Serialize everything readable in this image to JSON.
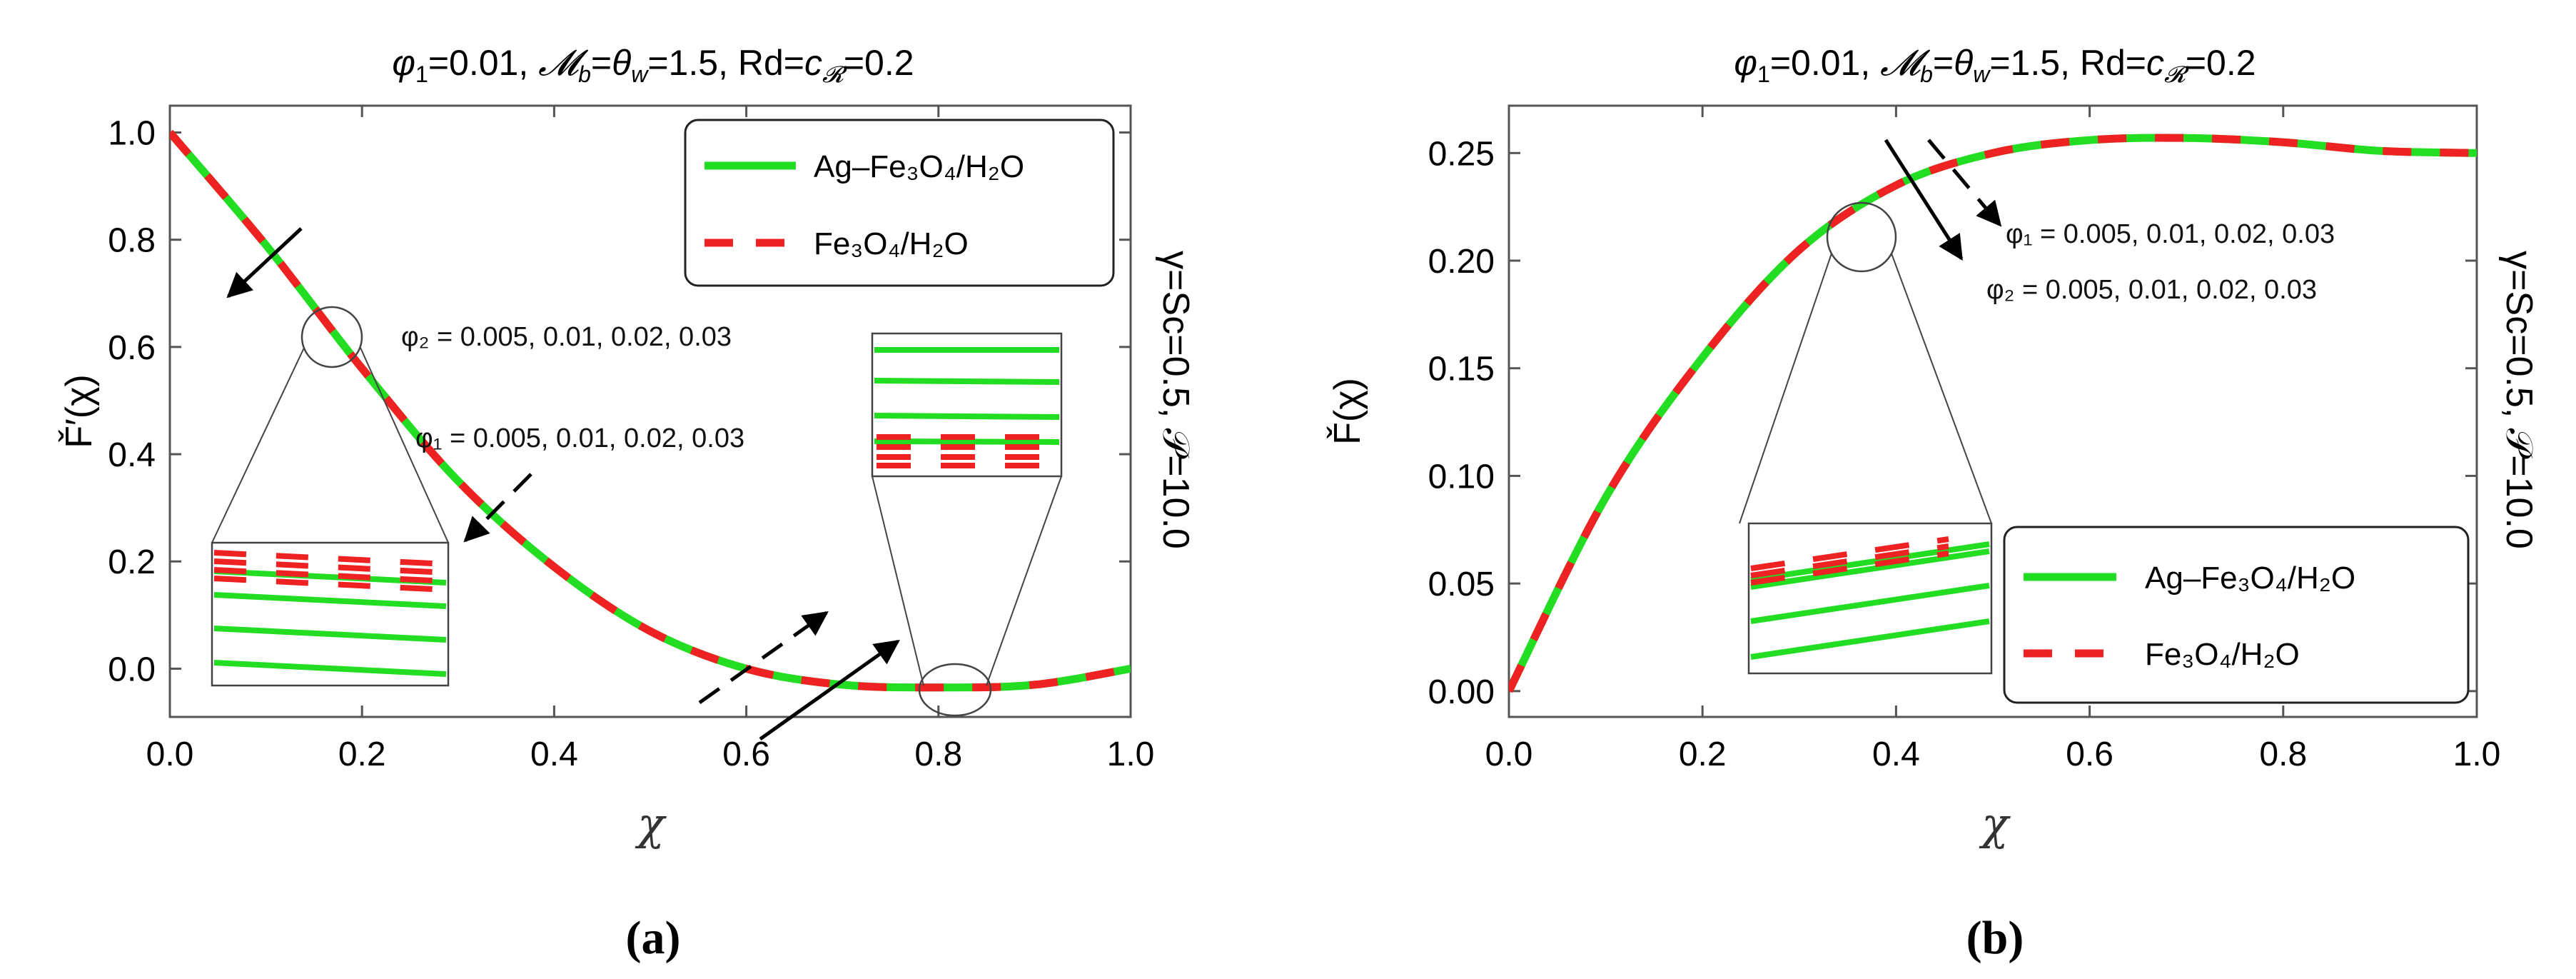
{
  "colors": {
    "green": "#22dd22",
    "red": "#ee2222",
    "black": "#000000"
  },
  "chart_data": [
    {
      "type": "line",
      "panel_label": "(a)",
      "title": "φ₁=0.01, 𝓜_b=θ_w=1.5, Rd=c_𝓡=0.2",
      "title_parts": {
        "phi": "φ",
        "one": "1",
        "a": "=0.01, ",
        "M": "𝓜",
        "b": "b",
        "eq": "=",
        "theta": "θ",
        "w": "w",
        "c": "=1.5, Rd=",
        "cR": "c",
        "R": "𝓡",
        "d": "=0.2"
      },
      "xlabel": "χ",
      "ylabel": "F̌′(χ)",
      "side_label": "γ=Sc=0.5, 𝒫=10.0",
      "xlim": [
        0.0,
        1.0
      ],
      "ylim": [
        -0.09,
        1.05
      ],
      "x_ticks": [
        "0.0",
        "0.2",
        "0.4",
        "0.6",
        "0.8",
        "1.0"
      ],
      "y_ticks": [
        "0.0",
        "0.2",
        "0.4",
        "0.6",
        "0.8",
        "1.0"
      ],
      "x": [
        0.0,
        0.1,
        0.2,
        0.3,
        0.4,
        0.5,
        0.6,
        0.7,
        0.8,
        0.9,
        1.0
      ],
      "series": [
        {
          "name": "Ag–Fe₃O₄/H₂O",
          "style": "solid-green",
          "values": [
            1.0,
            0.79,
            0.56,
            0.35,
            0.19,
            0.07,
            0.0,
            -0.03,
            -0.035,
            -0.03,
            0.0
          ]
        },
        {
          "name": "Fe₃O₄/H₂O",
          "style": "dashed-red",
          "values": [
            1.0,
            0.79,
            0.56,
            0.35,
            0.19,
            0.07,
            0.0,
            -0.03,
            -0.035,
            -0.03,
            0.0
          ]
        }
      ],
      "legend": [
        "Ag–Fe₃O₄/H₂O",
        "Fe₃O₄/H₂O"
      ],
      "legend_position": "top-right",
      "annotations": [
        "φ₂ = 0.005, 0.01, 0.02, 0.03",
        "φ₁ = 0.005, 0.01, 0.02, 0.03"
      ]
    },
    {
      "type": "line",
      "panel_label": "(b)",
      "title": "φ₁=0.01, 𝓜_b=θ_w=1.5, Rd=c_𝓡=0.2",
      "xlabel": "χ",
      "ylabel": "F̌(χ)",
      "side_label": "γ=Sc=0.5, 𝒫=10.0",
      "xlim": [
        0.0,
        1.0
      ],
      "ylim": [
        -0.012,
        0.272
      ],
      "x_ticks": [
        "0.0",
        "0.2",
        "0.4",
        "0.6",
        "0.8",
        "1.0"
      ],
      "y_ticks": [
        "0.00",
        "0.05",
        "0.10",
        "0.15",
        "0.20",
        "0.25"
      ],
      "x": [
        0.0,
        0.1,
        0.2,
        0.3,
        0.4,
        0.5,
        0.6,
        0.7,
        0.8,
        0.9,
        1.0
      ],
      "series": [
        {
          "name": "Ag–Fe₃O₄/H₂O",
          "style": "solid-green",
          "values": [
            0.0,
            0.09,
            0.155,
            0.205,
            0.235,
            0.25,
            0.256,
            0.257,
            0.255,
            0.251,
            0.25
          ]
        },
        {
          "name": "Fe₃O₄/H₂O",
          "style": "dashed-red",
          "values": [
            0.0,
            0.09,
            0.155,
            0.205,
            0.235,
            0.25,
            0.256,
            0.257,
            0.255,
            0.251,
            0.25
          ]
        }
      ],
      "legend": [
        "Ag–Fe₃O₄/H₂O",
        "Fe₃O₄/H₂O"
      ],
      "legend_position": "bottom-right",
      "annotations": [
        "φ₁ = 0.005, 0.01, 0.02, 0.03",
        "φ₂ = 0.005, 0.01, 0.02, 0.03"
      ]
    }
  ]
}
